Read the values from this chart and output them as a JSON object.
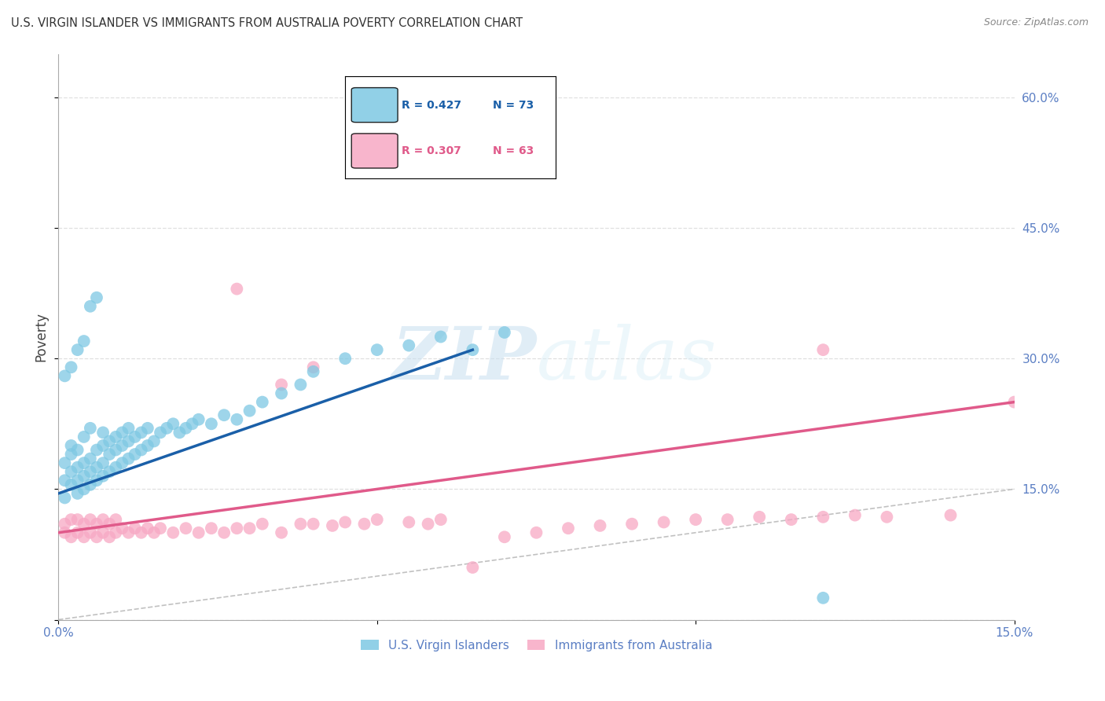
{
  "title": "U.S. VIRGIN ISLANDER VS IMMIGRANTS FROM AUSTRALIA POVERTY CORRELATION CHART",
  "source": "Source: ZipAtlas.com",
  "ylabel": "Poverty",
  "xlim": [
    0.0,
    0.15
  ],
  "ylim": [
    0.0,
    0.65
  ],
  "yticks": [
    0.0,
    0.15,
    0.3,
    0.45,
    0.6
  ],
  "ytick_labels": [
    "",
    "15.0%",
    "30.0%",
    "45.0%",
    "60.0%"
  ],
  "xticks": [
    0.0,
    0.05,
    0.1,
    0.15
  ],
  "xtick_labels": [
    "0.0%",
    "",
    "",
    "15.0%"
  ],
  "legend_R1": "R = 0.427",
  "legend_N1": "N = 73",
  "legend_R2": "R = 0.307",
  "legend_N2": "N = 63",
  "legend_label1": "U.S. Virgin Islanders",
  "legend_label2": "Immigrants from Australia",
  "blue_color": "#7ec8e3",
  "pink_color": "#f7a8c4",
  "blue_line_color": "#1a5fa8",
  "pink_line_color": "#e05a8a",
  "diagonal_color": "#bbbbbb",
  "axis_tick_color": "#5b7fc4",
  "title_color": "#333333",
  "source_color": "#888888",
  "ylabel_color": "#444444",
  "watermark_color": "#c8dff0",
  "blue_scatter_x": [
    0.001,
    0.001,
    0.001,
    0.002,
    0.002,
    0.002,
    0.002,
    0.003,
    0.003,
    0.003,
    0.003,
    0.004,
    0.004,
    0.004,
    0.004,
    0.005,
    0.005,
    0.005,
    0.005,
    0.006,
    0.006,
    0.006,
    0.007,
    0.007,
    0.007,
    0.007,
    0.008,
    0.008,
    0.008,
    0.009,
    0.009,
    0.009,
    0.01,
    0.01,
    0.01,
    0.011,
    0.011,
    0.011,
    0.012,
    0.012,
    0.013,
    0.013,
    0.014,
    0.014,
    0.015,
    0.016,
    0.017,
    0.018,
    0.019,
    0.02,
    0.021,
    0.022,
    0.024,
    0.026,
    0.028,
    0.03,
    0.032,
    0.035,
    0.038,
    0.04,
    0.045,
    0.05,
    0.055,
    0.06,
    0.065,
    0.07,
    0.001,
    0.002,
    0.003,
    0.004,
    0.005,
    0.006,
    0.12
  ],
  "blue_scatter_y": [
    0.14,
    0.16,
    0.18,
    0.155,
    0.17,
    0.19,
    0.2,
    0.145,
    0.16,
    0.175,
    0.195,
    0.15,
    0.165,
    0.18,
    0.21,
    0.155,
    0.17,
    0.185,
    0.22,
    0.16,
    0.175,
    0.195,
    0.165,
    0.18,
    0.2,
    0.215,
    0.17,
    0.19,
    0.205,
    0.175,
    0.195,
    0.21,
    0.18,
    0.2,
    0.215,
    0.185,
    0.205,
    0.22,
    0.19,
    0.21,
    0.195,
    0.215,
    0.2,
    0.22,
    0.205,
    0.215,
    0.22,
    0.225,
    0.215,
    0.22,
    0.225,
    0.23,
    0.225,
    0.235,
    0.23,
    0.24,
    0.25,
    0.26,
    0.27,
    0.285,
    0.3,
    0.31,
    0.315,
    0.325,
    0.31,
    0.33,
    0.28,
    0.29,
    0.31,
    0.32,
    0.36,
    0.37,
    0.025
  ],
  "pink_scatter_x": [
    0.001,
    0.001,
    0.002,
    0.002,
    0.003,
    0.003,
    0.004,
    0.004,
    0.005,
    0.005,
    0.006,
    0.006,
    0.007,
    0.007,
    0.008,
    0.008,
    0.009,
    0.009,
    0.01,
    0.011,
    0.012,
    0.013,
    0.014,
    0.015,
    0.016,
    0.018,
    0.02,
    0.022,
    0.024,
    0.026,
    0.028,
    0.03,
    0.032,
    0.035,
    0.038,
    0.04,
    0.043,
    0.045,
    0.048,
    0.05,
    0.055,
    0.058,
    0.06,
    0.065,
    0.07,
    0.075,
    0.08,
    0.085,
    0.09,
    0.095,
    0.1,
    0.105,
    0.11,
    0.115,
    0.12,
    0.125,
    0.13,
    0.14,
    0.15,
    0.028,
    0.035,
    0.04,
    0.12
  ],
  "pink_scatter_y": [
    0.1,
    0.11,
    0.095,
    0.115,
    0.1,
    0.115,
    0.095,
    0.11,
    0.1,
    0.115,
    0.095,
    0.11,
    0.1,
    0.115,
    0.095,
    0.11,
    0.1,
    0.115,
    0.105,
    0.1,
    0.105,
    0.1,
    0.105,
    0.1,
    0.105,
    0.1,
    0.105,
    0.1,
    0.105,
    0.1,
    0.105,
    0.105,
    0.11,
    0.1,
    0.11,
    0.11,
    0.108,
    0.112,
    0.11,
    0.115,
    0.112,
    0.11,
    0.115,
    0.06,
    0.095,
    0.1,
    0.105,
    0.108,
    0.11,
    0.112,
    0.115,
    0.115,
    0.118,
    0.115,
    0.118,
    0.12,
    0.118,
    0.12,
    0.25,
    0.38,
    0.27,
    0.29,
    0.31
  ],
  "blue_line_x": [
    0.0,
    0.065
  ],
  "blue_line_y": [
    0.145,
    0.31
  ],
  "pink_line_x": [
    0.0,
    0.15
  ],
  "pink_line_y": [
    0.1,
    0.25
  ]
}
